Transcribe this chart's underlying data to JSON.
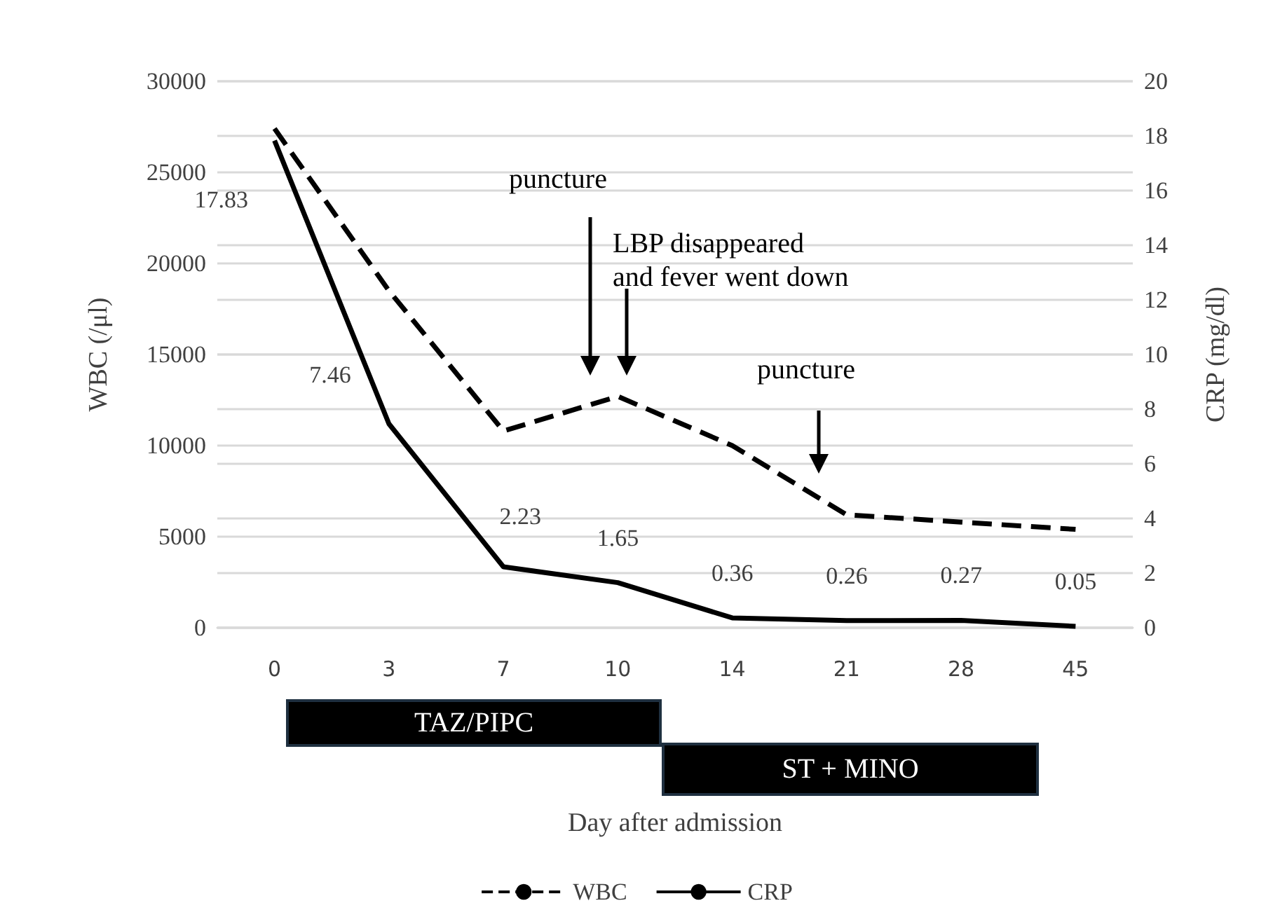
{
  "chart_data": {
    "type": "line",
    "categories": [
      "0",
      "3",
      "7",
      "10",
      "14",
      "21",
      "28",
      "45"
    ],
    "series": [
      {
        "name": "WBC",
        "color": "#000000",
        "line_style": "dashed",
        "values": [
          27400,
          18500,
          10800,
          12700,
          10000,
          6200,
          5800,
          5400
        ]
      },
      {
        "name": "CRP",
        "color": "#000000",
        "line_style": "solid",
        "axis": "y2",
        "values": [
          17.83,
          7.46,
          2.23,
          1.65,
          0.36,
          0.26,
          0.27,
          0.05
        ],
        "value_labels": [
          "17.83",
          "7.46",
          "2.23",
          "1.65",
          "0.36",
          "0.26",
          "0.27",
          "0.05"
        ]
      }
    ],
    "xlabel": "Day after admission",
    "ylabel": "WBC (/μl)",
    "y2label": "CRP (mg/dl)",
    "ylim": [
      0,
      30000
    ],
    "yticks": [
      0,
      5000,
      10000,
      15000,
      20000,
      25000,
      30000
    ],
    "y2lim": [
      0,
      20
    ],
    "y2ticks": [
      0,
      2,
      4,
      6,
      8,
      10,
      12,
      14,
      16,
      18,
      20
    ],
    "annotations": [
      "puncture",
      "LBP disappeared\nand fever went down",
      "puncture",
      "TAZ/PIPC",
      "ST + MINO"
    ],
    "grid": "y",
    "legend": "bottom",
    "marker": "none"
  }
}
